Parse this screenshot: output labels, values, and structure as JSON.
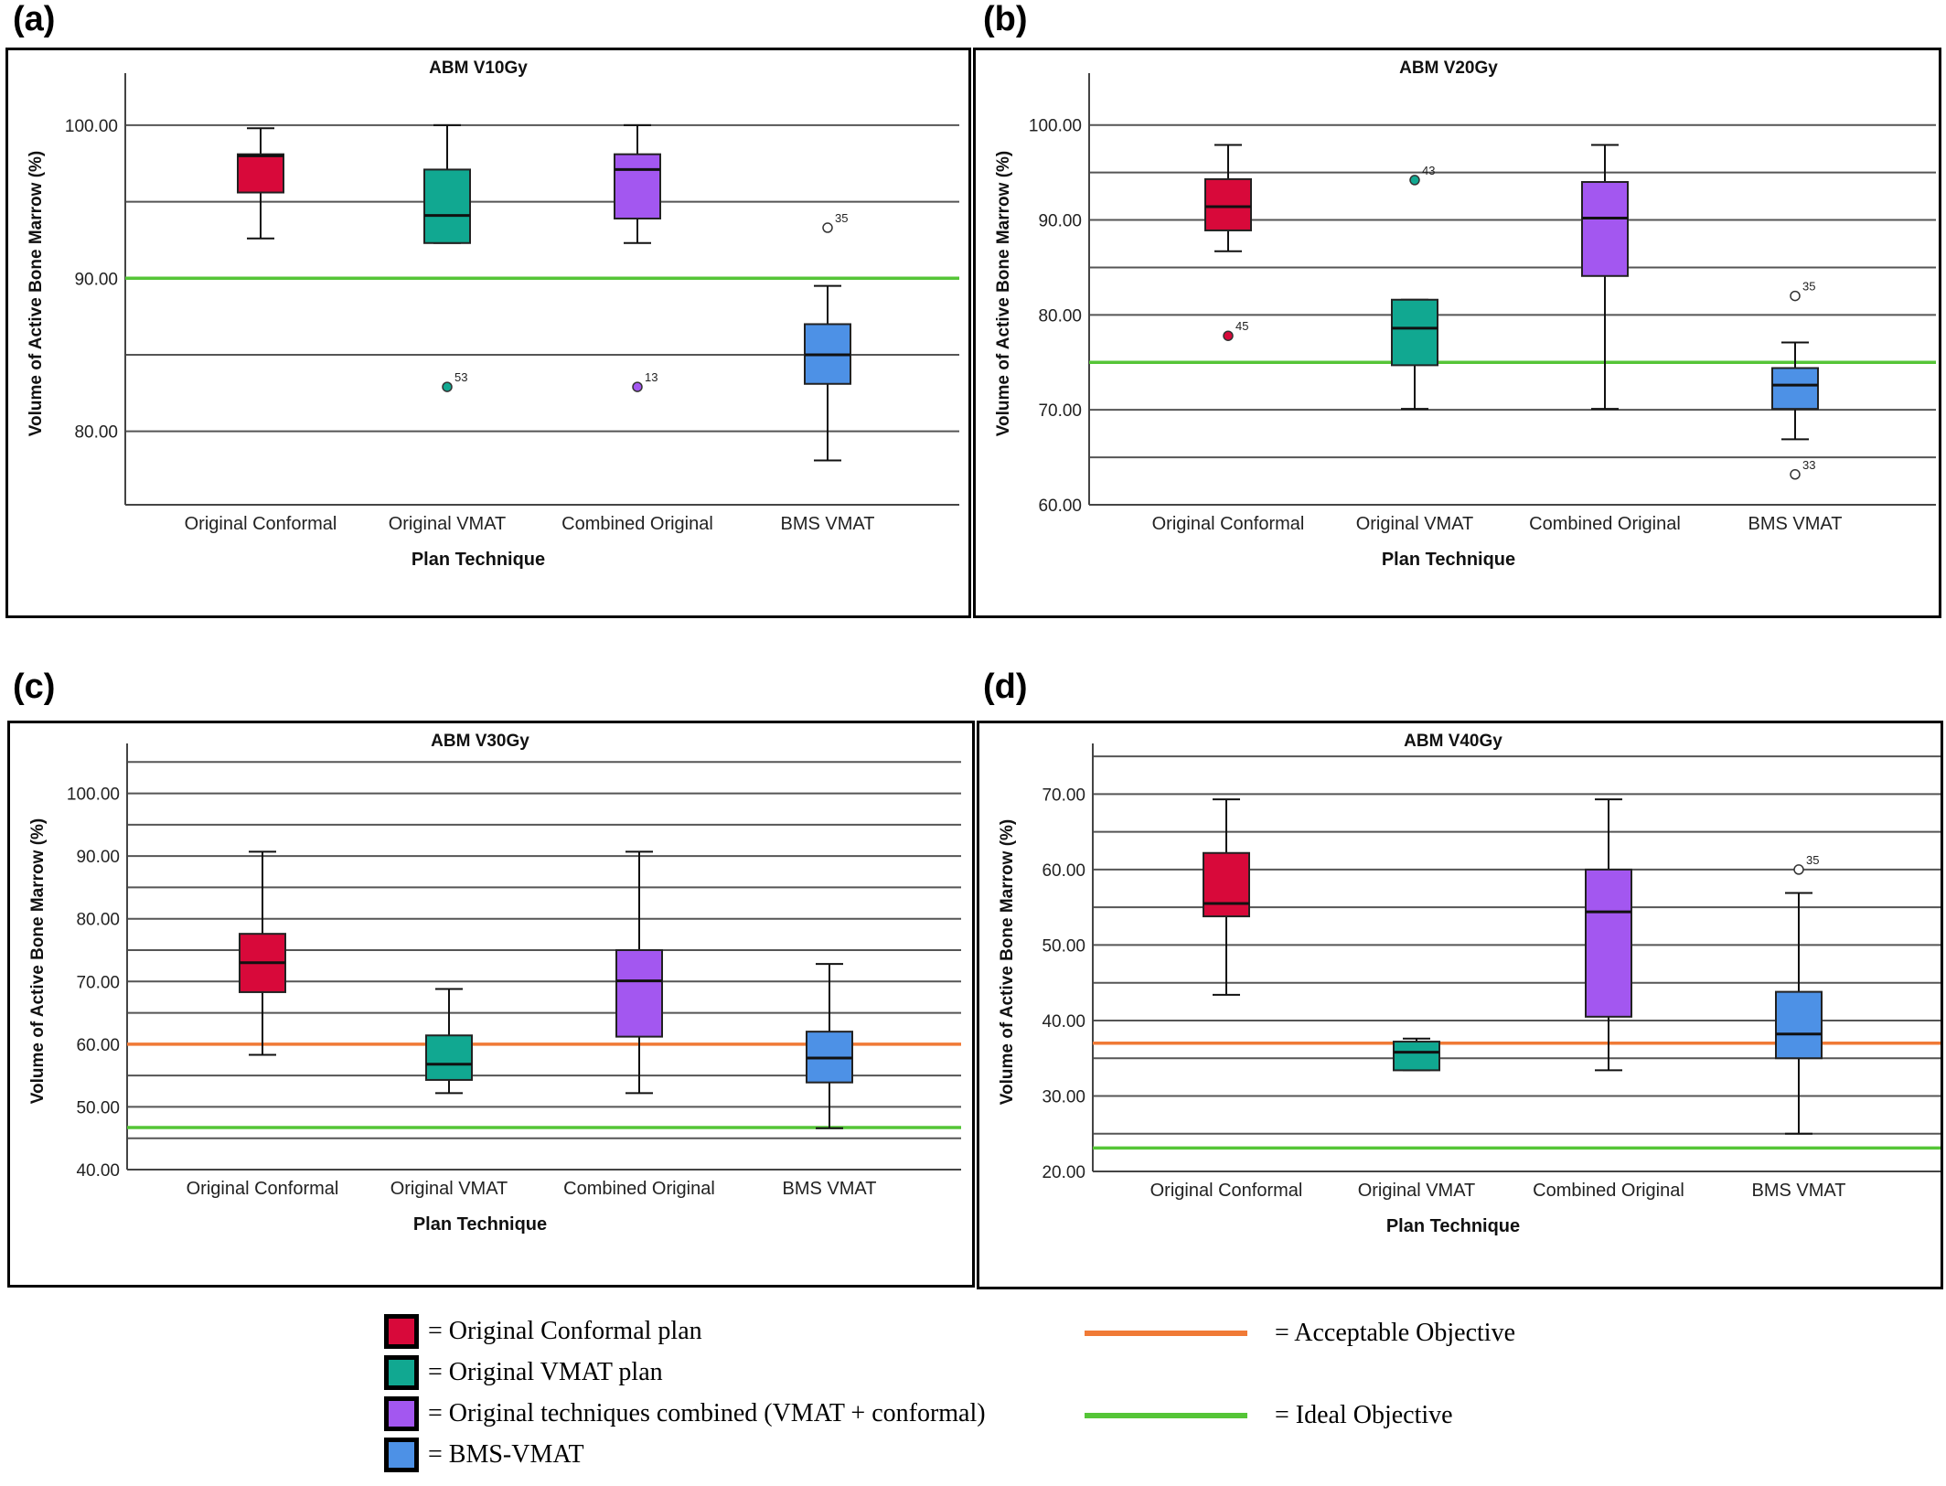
{
  "colors": {
    "original_conformal": "#d8093a",
    "original_vmat": "#11a891",
    "combined_original": "#a357f0",
    "bms_vmat": "#4d91e6",
    "acceptable": "#f07a36",
    "ideal": "#55c537",
    "gridline": "#555555"
  },
  "chart_data": [
    {
      "label": "(a)",
      "type": "box",
      "title": "ABM V10Gy",
      "xlabel": "Plan Technique",
      "ylabel": "Volume of Active Bone Marrow (%)",
      "ylim": [
        75.2,
        102.8
      ],
      "yticks": [
        "80.00",
        "90.00",
        "100.00"
      ],
      "gridlines": [
        80,
        85,
        90,
        95,
        100
      ],
      "categories": [
        "Original Conformal",
        "Original VMAT",
        "Combined Original",
        "BMS VMAT"
      ],
      "boxes": [
        {
          "whisker_low": 92.6,
          "q1": 95.6,
          "median": 98.0,
          "q3": 98.1,
          "whisker_high": 99.8,
          "color_key": "original_conformal",
          "outliers": []
        },
        {
          "whisker_low": 92.3,
          "q1": 92.3,
          "median": 94.1,
          "q3": 97.1,
          "whisker_high": 100.0,
          "color_key": "original_vmat",
          "outliers": [
            {
              "value": 82.9,
              "label": "53",
              "filled": true
            }
          ]
        },
        {
          "whisker_low": 92.3,
          "q1": 93.9,
          "median": 97.1,
          "q3": 98.1,
          "whisker_high": 100.0,
          "color_key": "combined_original",
          "outliers": [
            {
              "value": 82.9,
              "label": "13",
              "filled": true
            }
          ]
        },
        {
          "whisker_low": 78.1,
          "q1": 83.1,
          "median": 85.0,
          "q3": 87.0,
          "whisker_high": 89.5,
          "color_key": "bms_vmat",
          "outliers": [
            {
              "value": 93.3,
              "label": "35",
              "filled": false
            }
          ]
        }
      ],
      "ideal_objective": 90.0
    },
    {
      "label": "(b)",
      "type": "box",
      "title": "ABM V20Gy",
      "xlabel": "Plan Technique",
      "ylabel": "Volume of Active Bone Marrow (%)",
      "ylim": [
        60,
        104.5
      ],
      "yticks": [
        "60.00",
        "70.00",
        "80.00",
        "90.00",
        "100.00"
      ],
      "gridlines": [
        65,
        70,
        75,
        80,
        85,
        90,
        95,
        100
      ],
      "categories": [
        "Original Conformal",
        "Original VMAT",
        "Combined Original",
        "BMS VMAT"
      ],
      "boxes": [
        {
          "whisker_low": 86.7,
          "q1": 88.9,
          "median": 91.4,
          "q3": 94.3,
          "whisker_high": 97.9,
          "color_key": "original_conformal",
          "outliers": [
            {
              "value": 77.8,
              "label": "45",
              "filled": true
            }
          ]
        },
        {
          "whisker_low": 70.1,
          "q1": 74.7,
          "median": 78.6,
          "q3": 81.6,
          "whisker_high": 81.6,
          "color_key": "original_vmat",
          "outliers": [
            {
              "value": 94.2,
              "label": "43",
              "filled": true
            }
          ]
        },
        {
          "whisker_low": 70.1,
          "q1": 84.1,
          "median": 90.2,
          "q3": 94.0,
          "whisker_high": 97.9,
          "color_key": "combined_original",
          "outliers": []
        },
        {
          "whisker_low": 66.9,
          "q1": 70.1,
          "median": 72.6,
          "q3": 74.4,
          "whisker_high": 77.1,
          "color_key": "bms_vmat",
          "outliers": [
            {
              "value": 82.0,
              "label": "35",
              "filled": false
            },
            {
              "value": 63.2,
              "label": "33",
              "filled": false
            }
          ]
        }
      ],
      "ideal_objective": 75.0
    },
    {
      "label": "(c)",
      "type": "box",
      "title": "ABM V30Gy",
      "xlabel": "Plan Technique",
      "ylabel": "Volume of Active Bone Marrow (%)",
      "ylim": [
        40,
        106.5
      ],
      "yticks": [
        "40.00",
        "50.00",
        "60.00",
        "70.00",
        "80.00",
        "90.00",
        "100.00"
      ],
      "gridlines": [
        45,
        50,
        55,
        60,
        65,
        70,
        75,
        80,
        85,
        90,
        95,
        100,
        105
      ],
      "categories": [
        "Original Conformal",
        "Original VMAT",
        "Combined Original",
        "BMS VMAT"
      ],
      "boxes": [
        {
          "whisker_low": 58.3,
          "q1": 68.3,
          "median": 73.0,
          "q3": 77.6,
          "whisker_high": 90.7,
          "color_key": "original_conformal",
          "outliers": []
        },
        {
          "whisker_low": 52.2,
          "q1": 54.3,
          "median": 56.8,
          "q3": 61.4,
          "whisker_high": 68.8,
          "color_key": "original_vmat",
          "outliers": []
        },
        {
          "whisker_low": 52.2,
          "q1": 61.2,
          "median": 70.1,
          "q3": 75.0,
          "whisker_high": 90.7,
          "color_key": "combined_original",
          "outliers": []
        },
        {
          "whisker_low": 46.6,
          "q1": 53.9,
          "median": 57.8,
          "q3": 62.0,
          "whisker_high": 72.8,
          "color_key": "bms_vmat",
          "outliers": []
        }
      ],
      "acceptable_objective": 60.0,
      "ideal_objective": 46.7
    },
    {
      "label": "(d)",
      "type": "box",
      "title": "ABM V40Gy",
      "xlabel": "Plan Technique",
      "ylabel": "Volume of Active Bone Marrow (%)",
      "ylim": [
        20,
        75.5
      ],
      "yticks": [
        "20.00",
        "30.00",
        "40.00",
        "50.00",
        "60.00",
        "70.00"
      ],
      "gridlines": [
        25,
        30,
        35,
        40,
        45,
        50,
        55,
        60,
        65,
        70,
        75
      ],
      "categories": [
        "Original Conformal",
        "Original VMAT",
        "Combined Original",
        "BMS VMAT"
      ],
      "boxes": [
        {
          "whisker_low": 43.4,
          "q1": 53.8,
          "median": 55.5,
          "q3": 62.2,
          "whisker_high": 69.3,
          "color_key": "original_conformal",
          "outliers": []
        },
        {
          "whisker_low": 33.4,
          "q1": 33.4,
          "median": 35.8,
          "q3": 37.2,
          "whisker_high": 37.6,
          "color_key": "original_vmat",
          "outliers": []
        },
        {
          "whisker_low": 33.4,
          "q1": 40.5,
          "median": 54.4,
          "q3": 60.0,
          "whisker_high": 69.3,
          "color_key": "combined_original",
          "outliers": []
        },
        {
          "whisker_low": 25.0,
          "q1": 35.0,
          "median": 38.2,
          "q3": 43.8,
          "whisker_high": 56.9,
          "color_key": "bms_vmat",
          "outliers": [
            {
              "value": 60.0,
              "label": "35",
              "filled": false
            }
          ]
        }
      ],
      "acceptable_objective": 37.0,
      "ideal_objective": 23.1
    }
  ],
  "legend": {
    "items": [
      {
        "text": "= Original Conformal plan",
        "color_key": "original_conformal"
      },
      {
        "text": "= Original VMAT plan",
        "color_key": "original_vmat"
      },
      {
        "text": "= Original techniques combined (VMAT + conformal)",
        "color_key": "combined_original"
      },
      {
        "text": "= BMS-VMAT",
        "color_key": "bms_vmat"
      }
    ],
    "lines": [
      {
        "text": "= Acceptable Objective",
        "color_key": "acceptable"
      },
      {
        "text": "= Ideal Objective",
        "color_key": "ideal"
      }
    ]
  }
}
